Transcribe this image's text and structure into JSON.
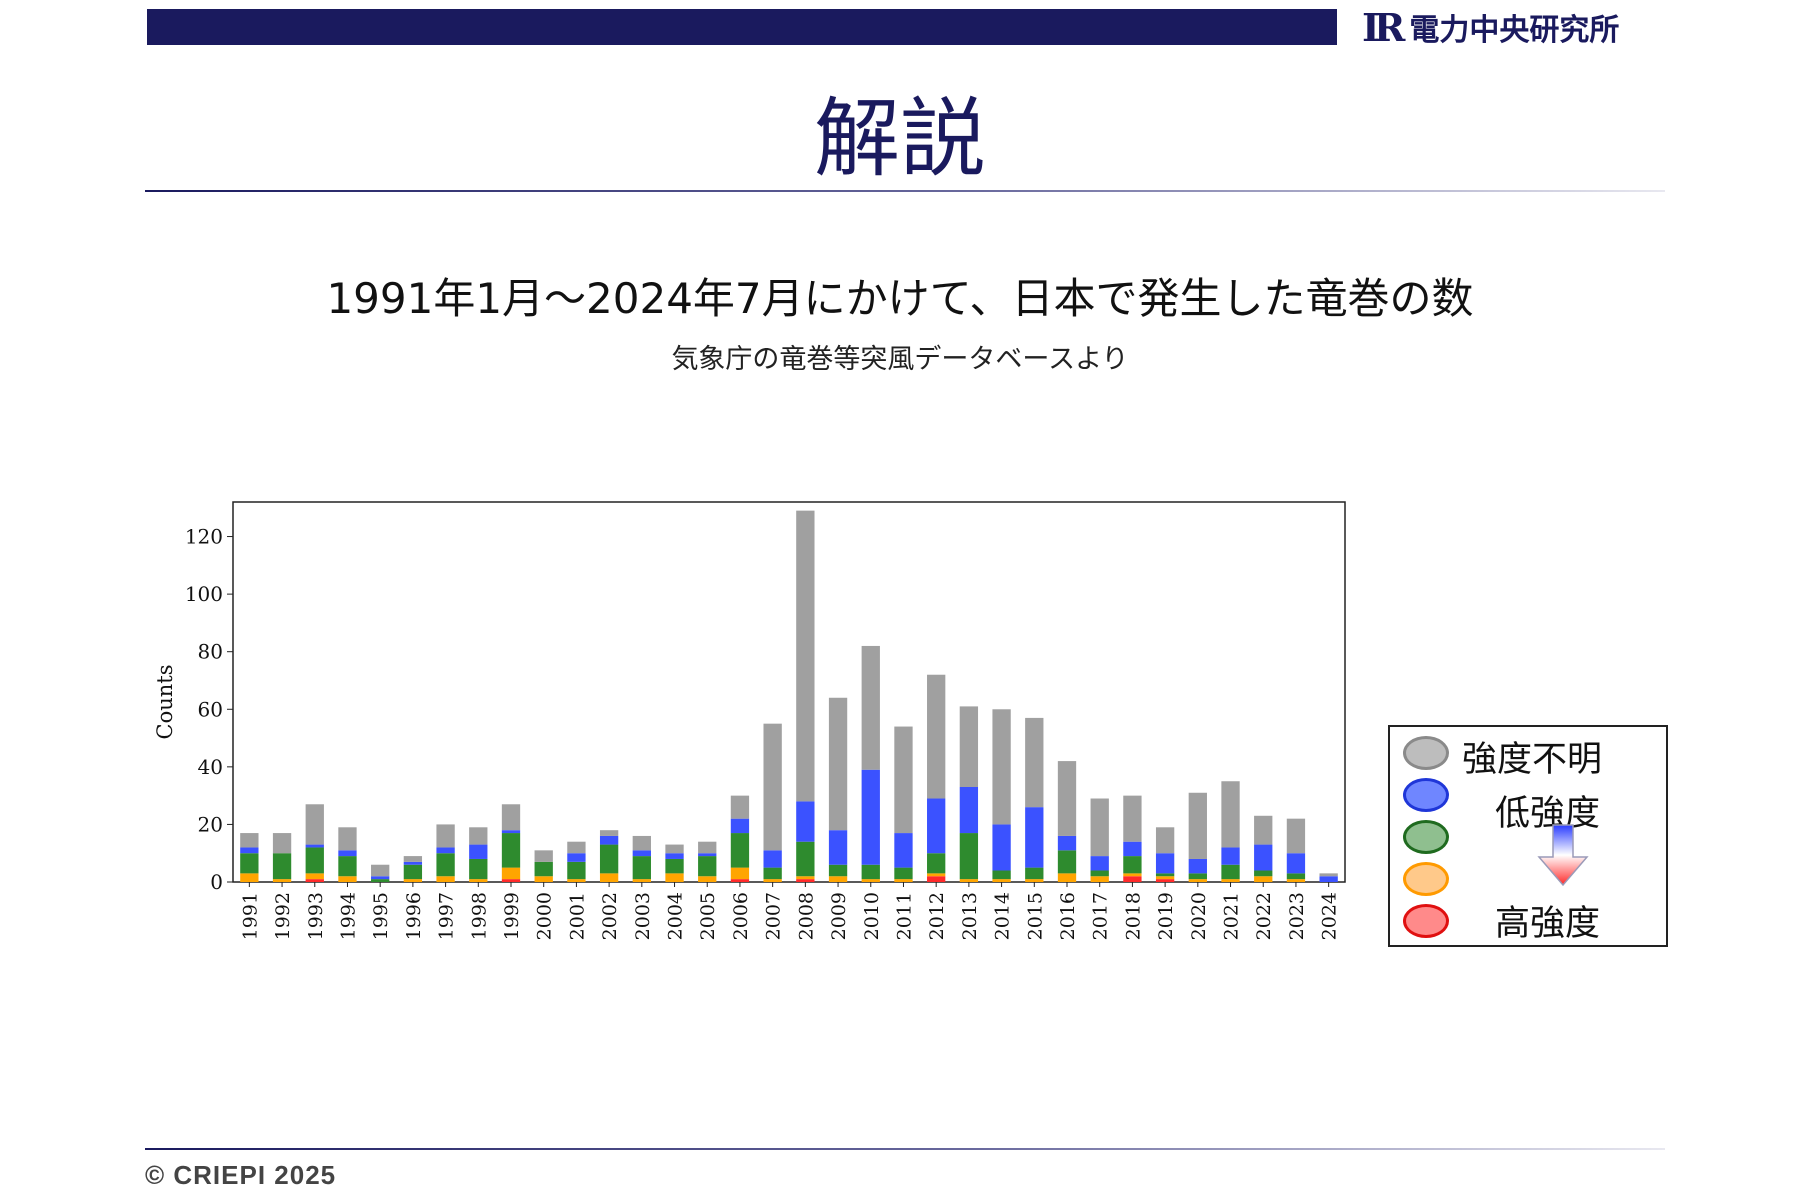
{
  "header": {
    "logo_mark": "IR",
    "logo_text": "電力中央研究所",
    "slide_title": "解説"
  },
  "headline": "1991年1月〜2024年7月にかけて、日本で発生した竜巻の数",
  "subline": "気象庁の竜巻等突風データベースより",
  "footer": {
    "copyright": "© CRIEPI 2025"
  },
  "legend": {
    "unknown": "強度不明",
    "low": "低強度",
    "high": "高強度",
    "colors": {
      "unknown": "#a0a0a0",
      "blue": "#3b52ff",
      "green": "#2e8b2e",
      "orange": "#ffa500",
      "red": "#ff2a2a"
    }
  },
  "chart_data": {
    "type": "bar",
    "stacked": true,
    "ylabel": "Counts",
    "xlabel": "",
    "ylim": [
      0,
      132
    ],
    "yticks": [
      0,
      20,
      40,
      60,
      80,
      100,
      120
    ],
    "categories": [
      "1991",
      "1992",
      "1993",
      "1994",
      "1995",
      "1996",
      "1997",
      "1998",
      "1999",
      "2000",
      "2001",
      "2002",
      "2003",
      "2004",
      "2005",
      "2006",
      "2007",
      "2008",
      "2009",
      "2010",
      "2011",
      "2012",
      "2013",
      "2014",
      "2015",
      "2016",
      "2017",
      "2018",
      "2019",
      "2020",
      "2021",
      "2022",
      "2023",
      "2024"
    ],
    "series": [
      {
        "color": "#ff2a2a",
        "values": [
          0,
          0,
          1,
          0,
          0,
          0,
          0,
          0,
          1,
          0,
          0,
          0,
          0,
          0,
          0,
          1,
          0,
          1,
          0,
          0,
          0,
          2,
          0,
          0,
          0,
          0,
          0,
          2,
          1,
          0,
          0,
          0,
          0,
          0
        ]
      },
      {
        "color": "#ffa500",
        "values": [
          3,
          1,
          2,
          2,
          0,
          1,
          2,
          1,
          4,
          2,
          1,
          3,
          1,
          3,
          2,
          4,
          1,
          1,
          2,
          1,
          1,
          1,
          1,
          1,
          1,
          3,
          2,
          1,
          1,
          1,
          1,
          2,
          1,
          0
        ]
      },
      {
        "color": "#2e8b2e",
        "values": [
          7,
          9,
          9,
          7,
          1,
          5,
          8,
          7,
          12,
          5,
          6,
          10,
          8,
          5,
          7,
          12,
          4,
          12,
          4,
          5,
          4,
          7,
          16,
          3,
          4,
          8,
          2,
          6,
          1,
          2,
          5,
          2,
          2,
          0
        ]
      },
      {
        "color": "#3b52ff",
        "values": [
          2,
          0,
          1,
          2,
          1,
          1,
          2,
          5,
          1,
          0,
          3,
          3,
          2,
          2,
          1,
          5,
          6,
          14,
          12,
          33,
          12,
          19,
          16,
          16,
          21,
          5,
          5,
          5,
          7,
          5,
          6,
          9,
          7,
          2
        ]
      },
      {
        "color": "#a0a0a0",
        "values": [
          5,
          7,
          14,
          8,
          4,
          2,
          8,
          6,
          9,
          4,
          4,
          2,
          5,
          3,
          4,
          8,
          44,
          101,
          46,
          43,
          37,
          43,
          28,
          40,
          31,
          26,
          20,
          16,
          9,
          23,
          23,
          10,
          12,
          1
        ]
      }
    ]
  }
}
